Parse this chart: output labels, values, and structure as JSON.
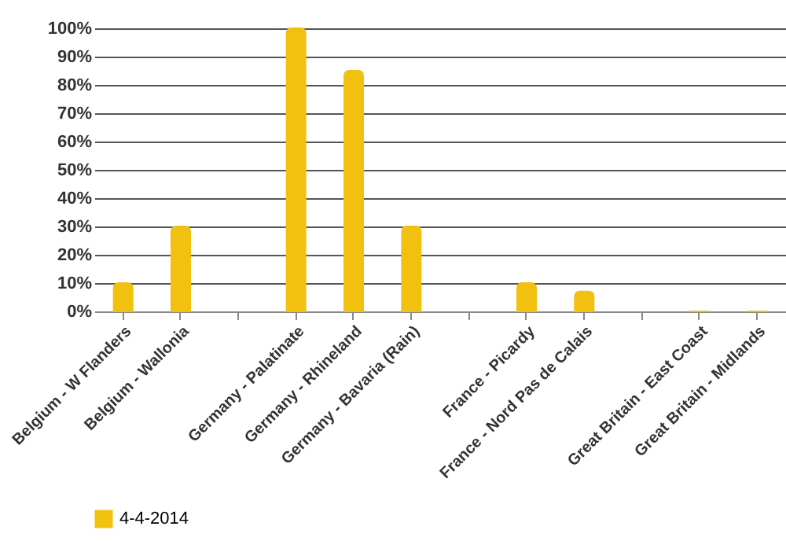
{
  "chart_data": {
    "type": "bar",
    "categories": [
      "Belgium - W Flanders",
      "Belgium - Wallonia",
      null,
      "Germany - Palatinate",
      "Germany - Rhineland",
      "Germany - Bavaria (Rain)",
      null,
      "France - Picardy",
      "France - Nord Pas de Calais",
      null,
      "Great Britain - East Coast",
      "Great Britain - Midlands"
    ],
    "series": [
      {
        "name": "4-4-2014",
        "color": "#f2c00f",
        "values": [
          10,
          30,
          null,
          100,
          85,
          30,
          null,
          10,
          7,
          null,
          0,
          0
        ]
      }
    ],
    "ylim": [
      0,
      100
    ],
    "yticks": [
      {
        "value": 0,
        "label": "0%"
      },
      {
        "value": 10,
        "label": "10%"
      },
      {
        "value": 20,
        "label": "20%"
      },
      {
        "value": 30,
        "label": "30%"
      },
      {
        "value": 40,
        "label": "40%"
      },
      {
        "value": 50,
        "label": "50%"
      },
      {
        "value": 60,
        "label": "60%"
      },
      {
        "value": 70,
        "label": "70%"
      },
      {
        "value": 80,
        "label": "80%"
      },
      {
        "value": 90,
        "label": "90%"
      },
      {
        "value": 100,
        "label": "100%"
      }
    ],
    "grid": "y",
    "legend": "bottom"
  }
}
